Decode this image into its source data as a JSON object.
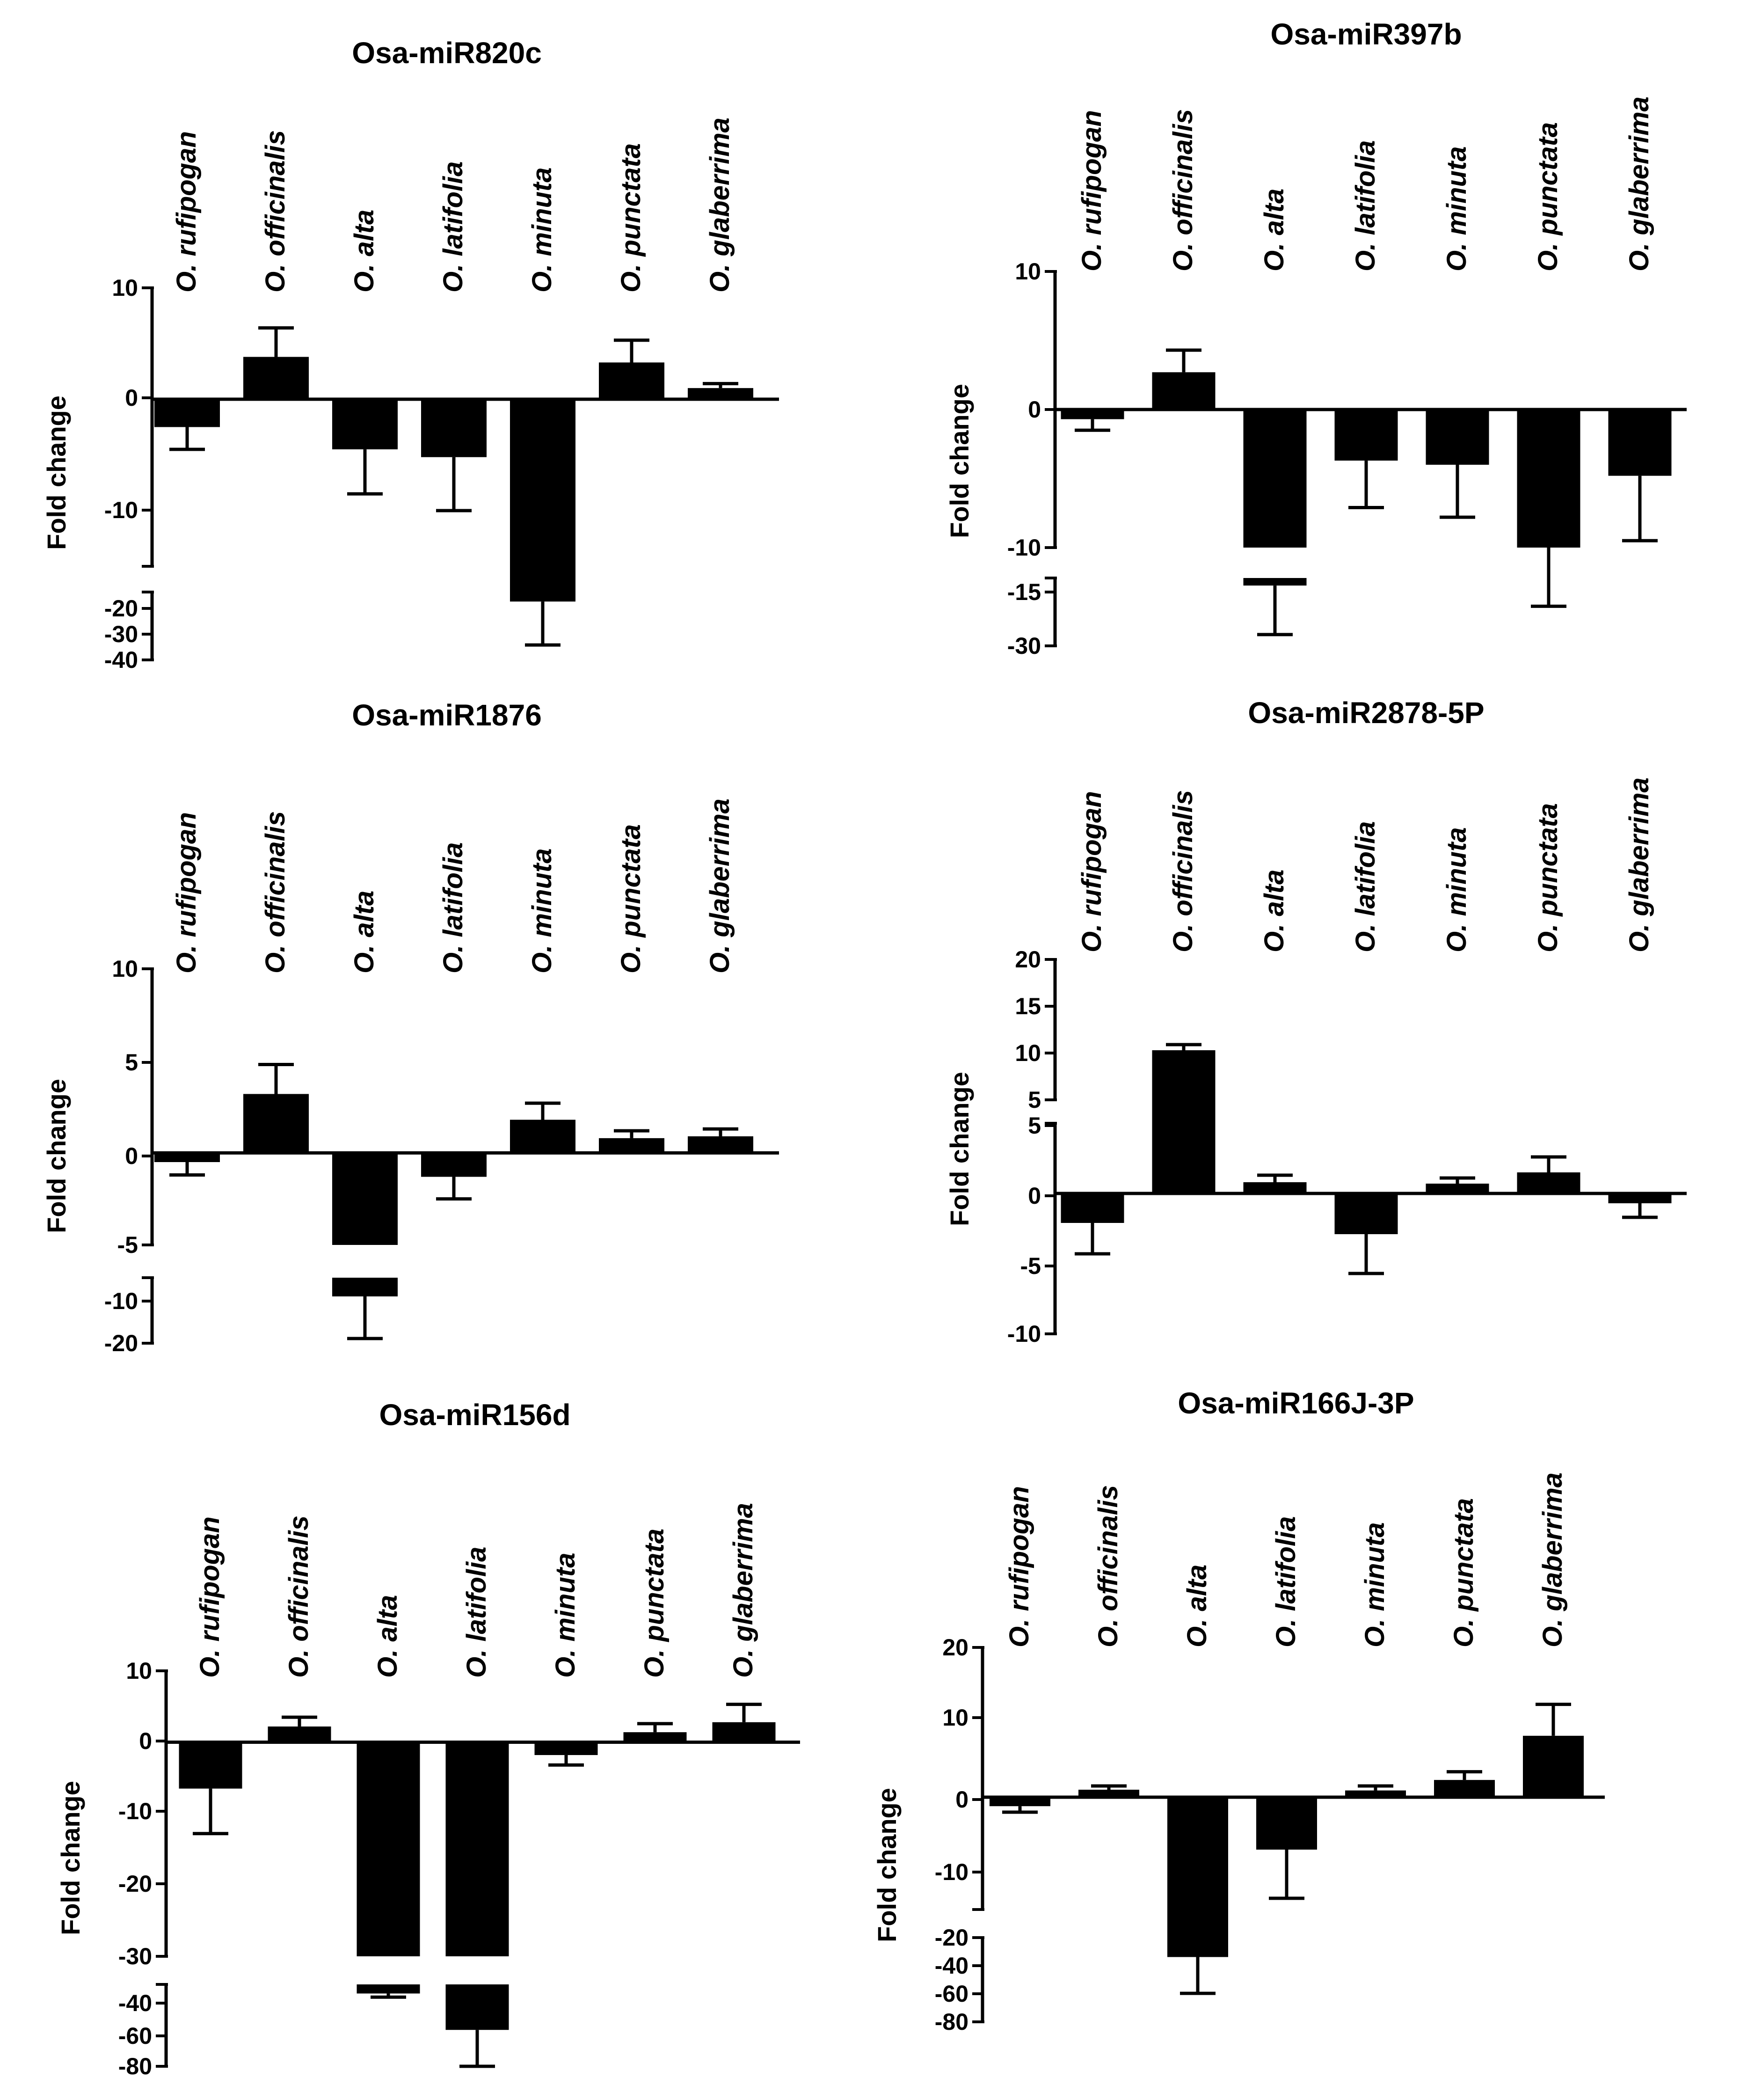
{
  "categories": [
    "O. rufipogan",
    "O. officinalis",
    "O. alta",
    "O. latifolia",
    "O. minuta",
    "O. punctata",
    "O. glaberrima"
  ],
  "chart_data": [
    {
      "type": "bar",
      "title": "Osa-miR820c",
      "ylabel": "Fold change",
      "categories": [
        "O. rufipogan",
        "O. officinalis",
        "O. alta",
        "O. latifolia",
        "O. minuta",
        "O. punctata",
        "O. glaberrima"
      ],
      "values": [
        -2.5,
        3.8,
        -4.5,
        -5.2,
        -18.5,
        3.3,
        1.0
      ],
      "errors": [
        2.0,
        2.6,
        4.0,
        4.8,
        16.0,
        2.0,
        0.4
      ],
      "y_segments": [
        [
          -15,
          10
        ],
        [
          -40,
          -15
        ]
      ],
      "upper_ticks": [
        "10",
        "0",
        "-10"
      ],
      "lower_ticks": [
        "-20",
        "-30",
        "-40"
      ]
    },
    {
      "type": "bar",
      "title": "Osa-miR397b",
      "ylabel": "Fold change",
      "categories": [
        "O. rufipogan",
        "O. officinalis",
        "O. alta",
        "O. latifolia",
        "O. minuta",
        "O. punctata",
        "O. glaberrima"
      ],
      "values": [
        -0.7,
        2.7,
        -14.0,
        -3.7,
        -4.0,
        -10.0,
        -4.8
      ],
      "errors": [
        0.8,
        1.6,
        13.0,
        3.4,
        3.8,
        9.5,
        4.7
      ],
      "y_segments": [
        [
          -10,
          10
        ],
        [
          -30,
          -12
        ]
      ],
      "upper_ticks": [
        "10",
        "0",
        "-10"
      ],
      "lower_ticks": [
        "-15",
        "-30"
      ]
    },
    {
      "type": "bar",
      "title": "Osa-miR1876",
      "ylabel": "Fold change",
      "categories": [
        "O. rufipogan",
        "O. officinalis",
        "O. alta",
        "O. latifolia",
        "O. minuta",
        "O. punctata",
        "O. glaberrima"
      ],
      "values": [
        -0.5,
        3.2,
        -10.0,
        -1.3,
        1.8,
        0.8,
        0.9
      ],
      "errors": [
        0.7,
        1.6,
        9.0,
        1.2,
        0.9,
        0.4,
        0.4
      ],
      "y_segments": [
        [
          -5,
          10
        ],
        [
          -20,
          -6
        ]
      ],
      "upper_ticks": [
        "10",
        "5",
        "0",
        "-5"
      ],
      "lower_ticks": [
        "-10",
        "-20"
      ]
    },
    {
      "type": "bar",
      "title": "Osa-miR2878-5P",
      "ylabel": "Fold change",
      "categories": [
        "O. rufipogan",
        "O. officinalis",
        "O. alta",
        "O. latifolia",
        "O. minuta",
        "O. punctata",
        "O. glaberrima"
      ],
      "values": [
        -2.1,
        10.3,
        0.8,
        -2.9,
        0.7,
        1.5,
        -0.7
      ],
      "errors": [
        2.2,
        0.6,
        0.5,
        2.8,
        0.4,
        1.1,
        1.0
      ],
      "y_segments": [
        [
          -10,
          5
        ],
        [
          5,
          20
        ]
      ],
      "upper_ticks": [
        "20",
        "15",
        "10",
        "5"
      ],
      "lower_ticks": [
        "5",
        "0",
        "-5",
        "-10"
      ]
    },
    {
      "type": "bar",
      "title": "Osa-miR156d",
      "ylabel": "Fold change",
      "categories": [
        "O. rufipogan",
        "O. officinalis",
        "O. alta",
        "O. latifolia",
        "O. minuta",
        "O. punctata",
        "O. glaberrima"
      ],
      "values": [
        -6.5,
        2.2,
        -40.0,
        -60.0,
        -1.8,
        1.4,
        2.8
      ],
      "errors": [
        6.3,
        1.3,
        2.0,
        20.0,
        1.4,
        1.2,
        2.5
      ],
      "y_segments": [
        [
          -30,
          10
        ],
        [
          -80,
          -35
        ]
      ],
      "upper_ticks": [
        "10",
        "0",
        "-10",
        "-20",
        "-30"
      ],
      "lower_ticks": [
        "-40",
        "-60",
        "-80"
      ]
    },
    {
      "type": "bar",
      "title": "Osa-miR166J-3P",
      "ylabel": "Fold change",
      "categories": [
        "O. rufipogan",
        "O. officinalis",
        "O. alta",
        "O. latifolia",
        "O. minuta",
        "O. punctata",
        "O. glaberrima"
      ],
      "values": [
        -1.2,
        1.0,
        -30.0,
        -7.0,
        0.9,
        2.3,
        8.2
      ],
      "errors": [
        0.8,
        0.5,
        28.0,
        6.5,
        0.6,
        1.1,
        4.2
      ],
      "y_segments": [
        [
          -15,
          20
        ],
        [
          -80,
          -15
        ]
      ],
      "upper_ticks": [
        "20",
        "10",
        "0",
        "-10"
      ],
      "lower_ticks": [
        "-20",
        "-40",
        "-60",
        "-80"
      ]
    }
  ]
}
